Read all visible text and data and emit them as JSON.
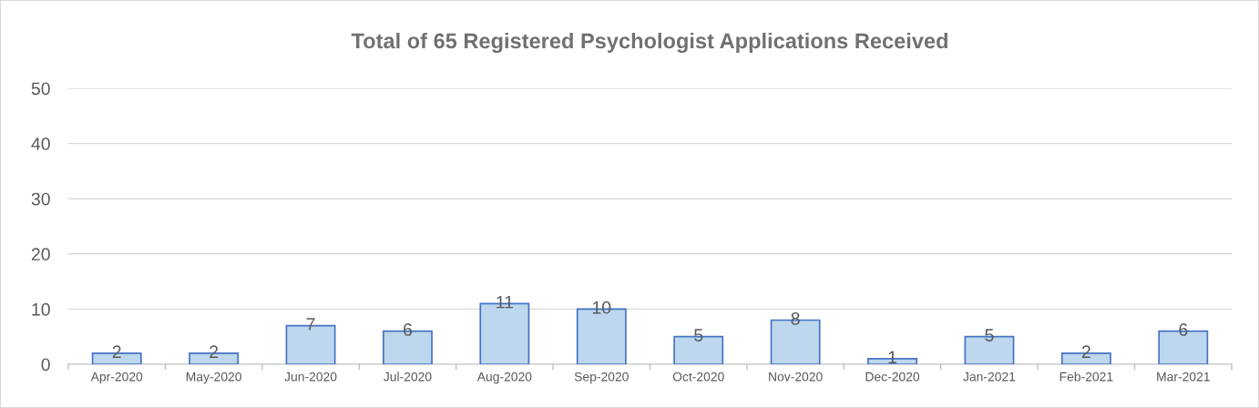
{
  "chart_data": {
    "type": "bar",
    "title": "Total of 65 Registered Psychologist Applications Received",
    "categories": [
      "Apr-2020",
      "May-2020",
      "Jun-2020",
      "Jul-2020",
      "Aug-2020",
      "Sep-2020",
      "Oct-2020",
      "Nov-2020",
      "Dec-2020",
      "Jan-2021",
      "Feb-2021",
      "Mar-2021"
    ],
    "values": [
      2,
      2,
      7,
      6,
      11,
      10,
      5,
      8,
      1,
      5,
      2,
      6
    ],
    "color": "#bdd7ee",
    "ylim": [
      0,
      50
    ],
    "yticks": [
      0,
      10,
      20,
      30,
      40,
      50
    ],
    "grid": "y",
    "data_labels": true
  }
}
